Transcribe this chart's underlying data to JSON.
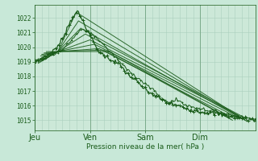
{
  "bg_color": "#c8e8d8",
  "plot_bg_color": "#cce8d8",
  "grid_color": "#aacfbe",
  "line_color": "#1a5c1a",
  "ylabel_ticks": [
    1015,
    1016,
    1017,
    1018,
    1019,
    1020,
    1021,
    1022
  ],
  "ylim": [
    1014.3,
    1022.9
  ],
  "xlabel": "Pression niveau de la mer( hPa )",
  "day_labels": [
    "Jeu",
    "Ven",
    "Sam",
    "Dim"
  ],
  "day_positions": [
    0,
    48,
    96,
    144
  ],
  "xlim": [
    0,
    192
  ],
  "total_hours": 192,
  "convergence_x": 20,
  "convergence_y": 1019.7
}
